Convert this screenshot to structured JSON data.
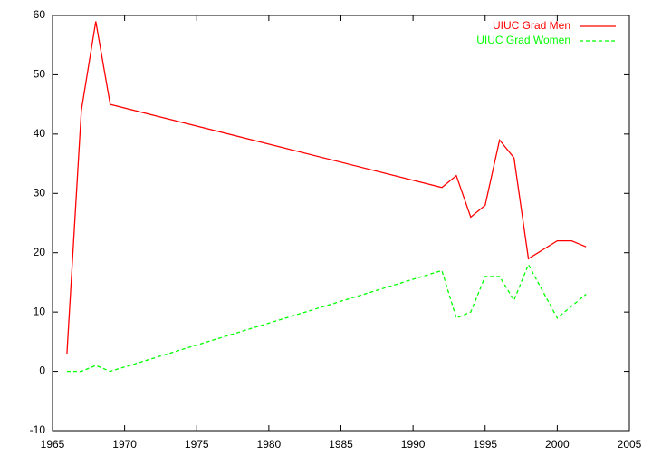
{
  "chart_data": {
    "type": "line",
    "x": [
      1966,
      1967,
      1968,
      1969,
      1992,
      1993,
      1994,
      1995,
      1996,
      1997,
      1998,
      2000,
      2001,
      2002
    ],
    "series": [
      {
        "name": "UIUC Grad Men",
        "color": "#ff0000",
        "dash": false,
        "values": [
          3,
          44,
          59,
          45,
          31,
          33,
          26,
          28,
          39,
          36,
          19,
          22,
          22,
          21
        ]
      },
      {
        "name": "UIUC Grad Women",
        "color": "#00ff00",
        "dash": true,
        "values": [
          0,
          0,
          1,
          0,
          17,
          9,
          10,
          16,
          16,
          12,
          18,
          9,
          11,
          13
        ]
      }
    ],
    "xlim": [
      1965,
      2005
    ],
    "xticks": [
      1965,
      1970,
      1975,
      1980,
      1985,
      1990,
      1995,
      2000,
      2005
    ],
    "ylim": [
      -10,
      60
    ],
    "yticks": [
      -10,
      0,
      10,
      20,
      30,
      40,
      50,
      60
    ],
    "legend": "top-right"
  }
}
